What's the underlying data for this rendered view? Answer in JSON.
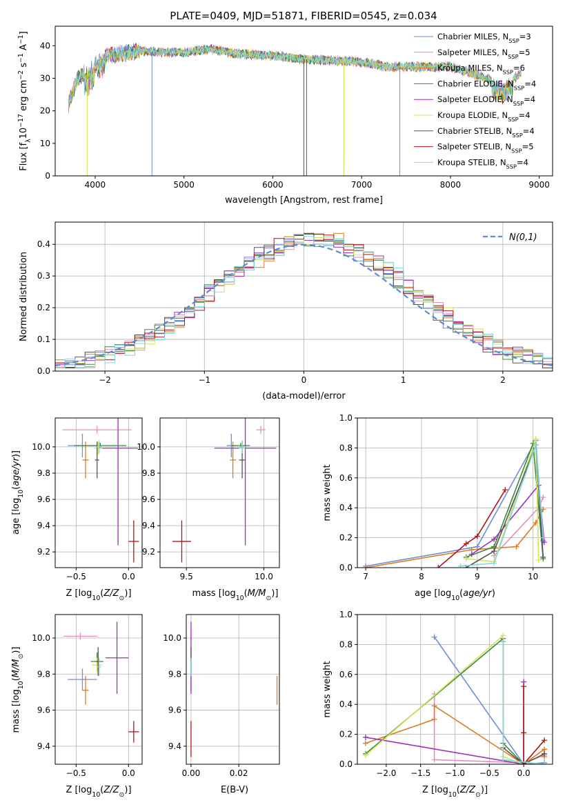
{
  "figure_title": "PLATE=0409, MJD=51871, FIBERID=0545, z=0.034",
  "legend": [
    {
      "name": "Chabrier MILES",
      "ssp": "3",
      "color": "#6b8edb"
    },
    {
      "name": "Salpeter MILES",
      "ssp": "5",
      "color": "#e48fbd"
    },
    {
      "name": "Kroupa MILES",
      "ssp": "6",
      "color": "#e07a1e"
    },
    {
      "name": "Chabrier ELODIE",
      "ssp": "4",
      "color": "#3a8a3a"
    },
    {
      "name": "Salpeter ELODIE",
      "ssp": "4",
      "color": "#9b2fbf"
    },
    {
      "name": "Kroupa ELODIE",
      "ssp": "4",
      "color": "#d6e356"
    },
    {
      "name": "Chabrier STELIB",
      "ssp": "4",
      "color": "#555555"
    },
    {
      "name": "Salpeter STELIB",
      "ssp": "5",
      "color": "#b01515"
    },
    {
      "name": "Kroupa STELIB",
      "ssp": "4",
      "color": "#7fd8e0"
    }
  ],
  "legend_ssp_prefix": "N",
  "legend_ssp_sub": "SSP",
  "chart_data": [
    {
      "id": "spectrum",
      "type": "line",
      "xlabel": "wavelength [Angstrom, rest frame]",
      "ylabel": "Flux [f",
      "xlim": [
        3550,
        9150
      ],
      "ylim": [
        0,
        46
      ],
      "xticks": [
        4000,
        5000,
        6000,
        7000,
        8000,
        9000
      ],
      "yticks": [
        0,
        10,
        20,
        30,
        40
      ],
      "continuum": {
        "x": [
          3700,
          3800,
          3950,
          4100,
          4300,
          4500,
          4700,
          5000,
          5300,
          5600,
          6000,
          6300,
          6600,
          7000,
          7300,
          7600,
          8000,
          8300,
          8600,
          8800
        ],
        "y": [
          22,
          30,
          33,
          37,
          37.5,
          38.5,
          38,
          38,
          39,
          37.5,
          37,
          36,
          35.5,
          35,
          33.5,
          33.5,
          33.5,
          31,
          28,
          31.5
        ]
      },
      "features": [
        {
          "series": "Chabrier MILES",
          "x": 4640,
          "ymin": 0
        },
        {
          "series": "Kroupa ELODIE",
          "x": 3910,
          "ymin": 0
        },
        {
          "series": "Kroupa ELODIE",
          "x": 6800,
          "ymin": 0
        },
        {
          "series": "Kroupa MILES",
          "x": 7430,
          "ymin": 0
        },
        {
          "series": "Chabrier STELIB",
          "x": 6350,
          "ymin": 0
        },
        {
          "series": "Chabrier STELIB",
          "x": 6380,
          "ymin": 0
        }
      ]
    },
    {
      "id": "residuals",
      "type": "histogram",
      "xlabel": "(data-model)/error",
      "ylabel": "Normed distribution",
      "xlim": [
        -2.5,
        2.5
      ],
      "ylim": [
        0,
        0.47
      ],
      "xticks": [
        -2,
        -1,
        0,
        1,
        2
      ],
      "yticks": [
        0.0,
        0.1,
        0.2,
        0.3,
        0.4
      ],
      "reference_label": "N(0,1)",
      "bin_width": 0.1
    },
    {
      "id": "age_vs_Z",
      "type": "errorbar",
      "xlabel": "Z [log",
      "ylabel": "age  [log",
      "xlim": [
        -0.7,
        0.13
      ],
      "ylim": [
        9.08,
        10.22
      ],
      "xticks": [
        -0.5,
        0.0
      ],
      "yticks": [
        9.2,
        9.4,
        9.6,
        9.8,
        10.0
      ],
      "points": [
        {
          "series": "Chabrier MILES",
          "x": -0.44,
          "y": 10.01,
          "xerr": 0.14,
          "yerr": 0.09
        },
        {
          "series": "Salpeter MILES",
          "x": -0.3,
          "y": 10.13,
          "xerr": 0.33,
          "yerr": 0.03
        },
        {
          "series": "Kroupa MILES",
          "x": -0.41,
          "y": 9.9,
          "xerr": 0.03,
          "yerr": 0.14
        },
        {
          "series": "Chabrier ELODIE",
          "x": -0.27,
          "y": 10.01,
          "xerr": 0.25,
          "yerr": 0.02
        },
        {
          "series": "Salpeter ELODIE",
          "x": -0.1,
          "y": 9.99,
          "xerr": 0.19,
          "yerr": 0.74
        },
        {
          "series": "Kroupa ELODIE",
          "x": -0.29,
          "y": 9.99,
          "xerr": 0.04,
          "yerr": 0.05
        },
        {
          "series": "Chabrier STELIB",
          "x": -0.3,
          "y": 9.9,
          "xerr": 0.02,
          "yerr": 0.14
        },
        {
          "series": "Salpeter STELIB",
          "x": 0.05,
          "y": 9.28,
          "xerr": 0.05,
          "yerr": 0.16
        },
        {
          "series": "Kroupa STELIB",
          "x": -0.28,
          "y": 10.0,
          "xerr": 0.03,
          "yerr": 0.05
        }
      ]
    },
    {
      "id": "age_vs_mass",
      "type": "errorbar",
      "xlabel": "mass [log",
      "ylabel": "",
      "xlim": [
        9.33,
        10.1
      ],
      "ylim": [
        9.08,
        10.22
      ],
      "xticks": [
        9.5,
        10.0
      ],
      "yticks": [
        9.2,
        9.4,
        9.6,
        9.8,
        10.0
      ],
      "points": [
        {
          "series": "Chabrier MILES",
          "x": 9.79,
          "y": 10.01,
          "xerr": 0.03,
          "yerr": 0.09
        },
        {
          "series": "Salpeter MILES",
          "x": 9.98,
          "y": 10.13,
          "xerr": 0.03,
          "yerr": 0.03
        },
        {
          "series": "Kroupa MILES",
          "x": 9.8,
          "y": 9.9,
          "xerr": 0.02,
          "yerr": 0.14
        },
        {
          "series": "Chabrier ELODIE",
          "x": 9.85,
          "y": 10.01,
          "xerr": 0.06,
          "yerr": 0.02
        },
        {
          "series": "Salpeter ELODIE",
          "x": 9.88,
          "y": 9.99,
          "xerr": 0.2,
          "yerr": 0.74
        },
        {
          "series": "Kroupa ELODIE",
          "x": 9.86,
          "y": 9.99,
          "xerr": 0.02,
          "yerr": 0.05
        },
        {
          "series": "Chabrier STELIB",
          "x": 9.86,
          "y": 9.9,
          "xerr": 0.02,
          "yerr": 0.14
        },
        {
          "series": "Salpeter STELIB",
          "x": 9.47,
          "y": 9.28,
          "xerr": 0.06,
          "yerr": 0.16
        },
        {
          "series": "Kroupa STELIB",
          "x": 9.86,
          "y": 10.0,
          "xerr": 0.03,
          "yerr": 0.05
        }
      ]
    },
    {
      "id": "weight_vs_age",
      "type": "line",
      "xlabel": "age  [log",
      "ylabel": "mass weight",
      "xlim": [
        6.85,
        10.35
      ],
      "ylim": [
        0,
        1
      ],
      "xticks": [
        7,
        8,
        9,
        10
      ],
      "yticks": [
        0.0,
        0.2,
        0.4,
        0.6,
        0.8,
        1.0
      ],
      "series": [
        {
          "name": "Chabrier MILES",
          "x": [
            7.0,
            9.0,
            10.05,
            10.18
          ],
          "y": [
            0.01,
            0.14,
            0.85,
            0.18
          ]
        },
        {
          "name": "Salpeter MILES",
          "x": [
            9.3,
            10.1,
            10.18
          ],
          "y": [
            0.08,
            0.4,
            0.47
          ]
        },
        {
          "name": "Kroupa MILES",
          "x": [
            7.0,
            8.9,
            9.7,
            10.05,
            10.18
          ],
          "y": [
            0.0,
            0.12,
            0.14,
            0.3,
            0.39
          ]
        },
        {
          "name": "Chabrier ELODIE",
          "x": [
            8.8,
            9.3,
            10.0,
            10.18
          ],
          "y": [
            0.07,
            0.14,
            0.83,
            0.06
          ]
        },
        {
          "name": "Salpeter ELODIE",
          "x": [
            8.9,
            9.3,
            10.1,
            10.2
          ],
          "y": [
            0.09,
            0.19,
            0.55,
            0.17
          ]
        },
        {
          "name": "Kroupa ELODIE",
          "x": [
            8.8,
            9.3,
            10.05,
            10.1
          ],
          "y": [
            0.06,
            0.04,
            0.86,
            0.05
          ]
        },
        {
          "name": "Chabrier STELIB",
          "x": [
            8.8,
            9.3,
            10.05,
            10.18
          ],
          "y": [
            0.0,
            0.11,
            0.82,
            0.07
          ]
        },
        {
          "name": "Salpeter STELIB",
          "x": [
            8.3,
            8.8,
            9.0,
            9.5
          ],
          "y": [
            0.0,
            0.16,
            0.21,
            0.52
          ]
        },
        {
          "name": "Kroupa STELIB",
          "x": [
            8.7,
            9.3,
            10.05,
            10.18
          ],
          "y": [
            0.01,
            0.03,
            0.82,
            0.2
          ]
        }
      ]
    },
    {
      "id": "mass_vs_Z",
      "type": "errorbar",
      "xlabel": "Z [log",
      "ylabel": "mass [log",
      "xlim": [
        -0.7,
        0.13
      ],
      "ylim": [
        9.3,
        10.13
      ],
      "xticks": [
        -0.5,
        0.0
      ],
      "yticks": [
        9.4,
        9.6,
        9.8,
        10.0
      ],
      "points": [
        {
          "series": "Chabrier MILES",
          "x": -0.44,
          "y": 9.77,
          "xerr": 0.14,
          "yerr": 0.06
        },
        {
          "series": "Salpeter MILES",
          "x": -0.46,
          "y": 10.01,
          "xerr": 0.16,
          "yerr": 0.02
        },
        {
          "series": "Kroupa MILES",
          "x": -0.41,
          "y": 9.71,
          "xerr": 0.03,
          "yerr": 0.08
        },
        {
          "series": "Chabrier ELODIE",
          "x": -0.3,
          "y": 9.87,
          "xerr": 0.06,
          "yerr": 0.05
        },
        {
          "series": "Salpeter ELODIE",
          "x": -0.11,
          "y": 9.89,
          "xerr": 0.11,
          "yerr": 0.2
        },
        {
          "series": "Kroupa ELODIE",
          "x": -0.3,
          "y": 9.85,
          "xerr": 0.05,
          "yerr": 0.04
        },
        {
          "series": "Chabrier STELIB",
          "x": -0.29,
          "y": 9.87,
          "xerr": 0.02,
          "yerr": 0.08
        },
        {
          "series": "Salpeter STELIB",
          "x": 0.05,
          "y": 9.48,
          "xerr": 0.05,
          "yerr": 0.06
        },
        {
          "series": "Kroupa STELIB",
          "x": -0.28,
          "y": 9.84,
          "xerr": 0.02,
          "yerr": 0.05
        }
      ]
    },
    {
      "id": "mass_vs_ebv",
      "type": "errorbar",
      "xlabel": "E(B-V)",
      "ylabel": "",
      "xlim": [
        -0.002,
        0.037
      ],
      "ylim": [
        9.3,
        10.13
      ],
      "xticks": [
        0.0,
        0.02
      ],
      "yticks": [
        9.4,
        9.6,
        9.8,
        10.0
      ],
      "points": [
        {
          "series": "Chabrier MILES",
          "x": 0.0,
          "y": 9.77,
          "xerr": 0,
          "yerr": 0.06
        },
        {
          "series": "Salpeter MILES",
          "x": 0.0,
          "y": 10.01,
          "xerr": 0,
          "yerr": 0.02
        },
        {
          "series": "Kroupa MILES",
          "x": 0.036,
          "y": 9.71,
          "xerr": 0,
          "yerr": 0.08
        },
        {
          "series": "Chabrier ELODIE",
          "x": 0.0,
          "y": 9.87,
          "xerr": 0,
          "yerr": 0.05
        },
        {
          "series": "Salpeter ELODIE",
          "x": 0.0,
          "y": 9.89,
          "xerr": 0,
          "yerr": 0.2
        },
        {
          "series": "Kroupa ELODIE",
          "x": 0.0,
          "y": 9.85,
          "xerr": 0,
          "yerr": 0.04
        },
        {
          "series": "Chabrier STELIB",
          "x": 0.0,
          "y": 9.87,
          "xerr": 0,
          "yerr": 0.08
        },
        {
          "series": "Salpeter STELIB",
          "x": 0.0,
          "y": 9.44,
          "xerr": 0,
          "yerr": 0.1
        },
        {
          "series": "Kroupa STELIB",
          "x": 0.0,
          "y": 9.84,
          "xerr": 0,
          "yerr": 0.05
        }
      ]
    },
    {
      "id": "weight_vs_Z",
      "type": "line",
      "xlabel": "Z [log",
      "ylabel": "mass weight",
      "xlim": [
        -2.42,
        0.42
      ],
      "ylim": [
        0,
        1
      ],
      "xticks": [
        -2.0,
        -1.5,
        -1.0,
        -0.5,
        0.0
      ],
      "yticks": [
        0.0,
        0.2,
        0.4,
        0.6,
        0.8,
        1.0
      ],
      "series": [
        {
          "name": "Chabrier MILES",
          "x": [
            -1.3,
            0.0,
            0.3
          ],
          "y": [
            0.85,
            0.0,
            0.01
          ]
        },
        {
          "name": "Salpeter MILES",
          "x": [
            -1.3,
            -1.3,
            0.0,
            0.3
          ],
          "y": [
            0.47,
            0.03,
            0.01,
            0.06
          ]
        },
        {
          "name": "Kroupa MILES",
          "x": [
            -2.3,
            -1.3,
            -1.3,
            0.0,
            0.3,
            0.3
          ],
          "y": [
            0.14,
            0.3,
            0.39,
            0.0,
            0.1,
            0.05
          ]
        },
        {
          "name": "Chabrier ELODIE",
          "x": [
            -2.3,
            -0.3,
            -0.3,
            0.0
          ],
          "y": [
            0.07,
            0.84,
            0.14,
            0.0
          ]
        },
        {
          "name": "Salpeter ELODIE",
          "x": [
            -2.3,
            0.0,
            0.0
          ],
          "y": [
            0.18,
            0.0,
            0.55
          ]
        },
        {
          "name": "Kroupa ELODIE",
          "x": [
            -2.3,
            -0.3,
            -0.3,
            0.0
          ],
          "y": [
            0.06,
            0.86,
            0.05,
            0.0
          ]
        },
        {
          "name": "Chabrier STELIB",
          "x": [
            -0.3,
            -0.3,
            0.0,
            0.3
          ],
          "y": [
            0.82,
            0.11,
            0.0,
            0.07
          ]
        },
        {
          "name": "Salpeter STELIB",
          "x": [
            0.0,
            0.0,
            0.0,
            0.3
          ],
          "y": [
            0.52,
            0.21,
            0.0,
            0.16
          ]
        },
        {
          "name": "Kroupa STELIB",
          "x": [
            -0.3,
            -0.3,
            0.3
          ],
          "y": [
            0.82,
            0.03,
            0.0
          ]
        }
      ]
    }
  ]
}
